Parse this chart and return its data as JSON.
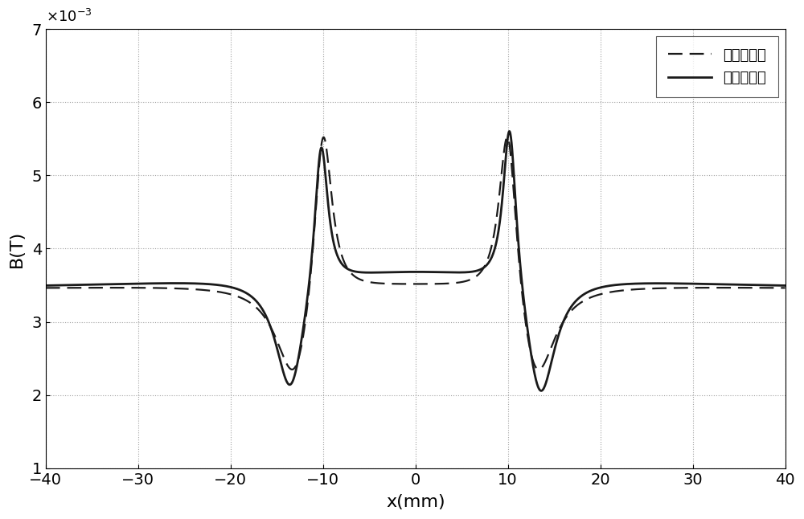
{
  "xlim": [
    -40,
    40
  ],
  "ylim": [
    1,
    7
  ],
  "yticks": [
    1,
    2,
    3,
    4,
    5,
    6,
    7
  ],
  "xticks": [
    -40,
    -30,
    -20,
    -10,
    0,
    10,
    20,
    30,
    40
  ],
  "xlabel": "x(mm)",
  "ylabel": "B(T)",
  "legend_dashed": "有限元方法",
  "legend_solid": "单元组合法",
  "background_color": "#ffffff",
  "grid_color": "#999999",
  "line_color": "#1a1a1a",
  "figsize": [
    10.0,
    6.46
  ],
  "dpi": 100
}
